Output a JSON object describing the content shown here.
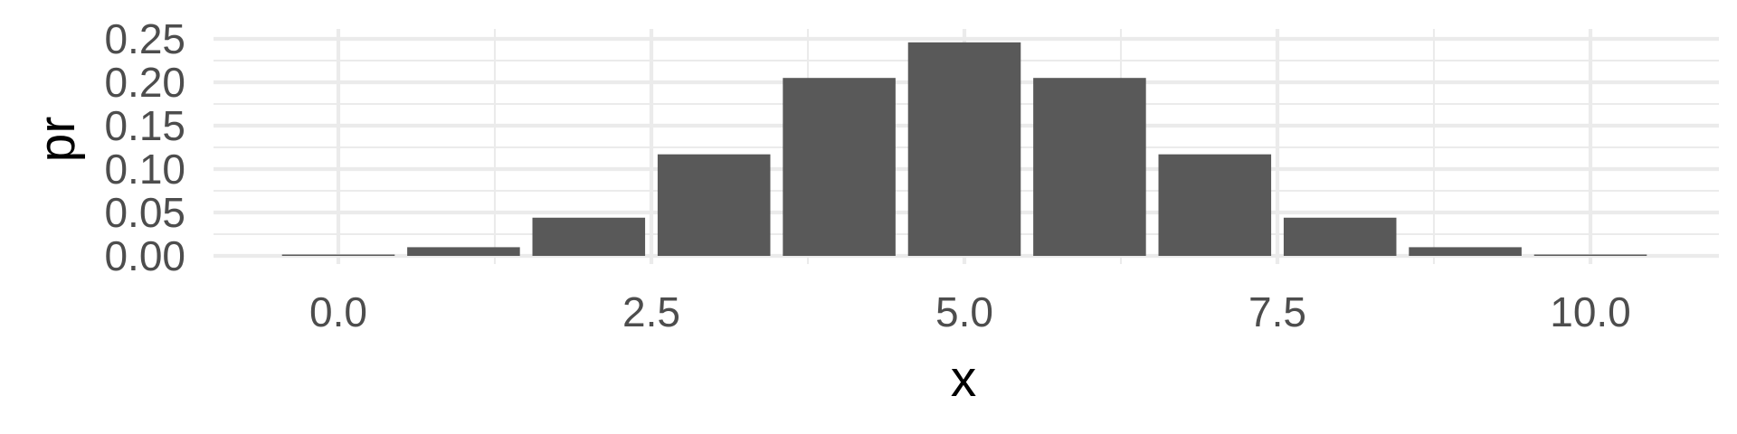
{
  "chart_data": {
    "type": "bar",
    "x": [
      0,
      1,
      2,
      3,
      4,
      5,
      6,
      7,
      8,
      9,
      10
    ],
    "values": [
      0.001,
      0.01,
      0.044,
      0.117,
      0.205,
      0.246,
      0.205,
      0.117,
      0.044,
      0.01,
      0.001
    ],
    "xlabel": "x",
    "ylabel": "pr",
    "xlim": [
      -1.0,
      11.0
    ],
    "ylim": [
      0,
      0.25
    ],
    "x_ticks": [
      "0.0",
      "2.5",
      "5.0",
      "7.5",
      "10.0"
    ],
    "y_ticks": [
      "0.00",
      "0.05",
      "0.10",
      "0.15",
      "0.20",
      "0.25"
    ],
    "grid": true,
    "bar_color": "#595959",
    "grid_color": "#ebebeb",
    "background": "#ffffff"
  }
}
